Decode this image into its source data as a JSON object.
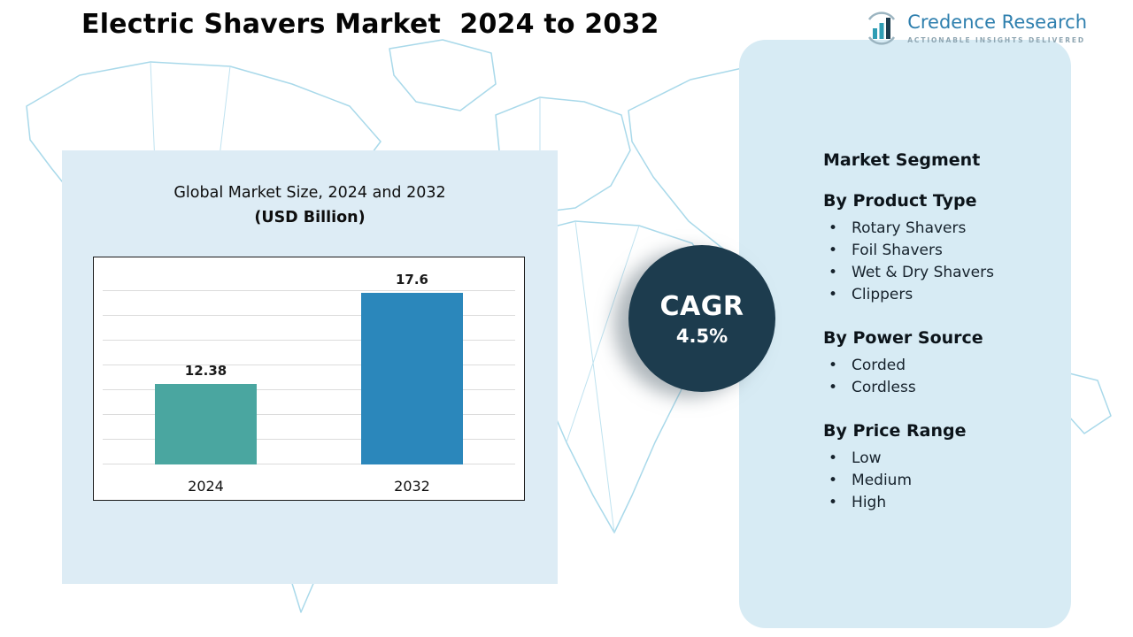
{
  "header": {
    "title": "Electric Shavers Market  2024 to 2032",
    "logo": {
      "name": "Credence Research",
      "tagline": "Actionable Insights Delivered"
    }
  },
  "chart_data": {
    "type": "bar",
    "title": "Global Market Size, 2024 and 2032",
    "subtitle": "(USD Billion)",
    "categories": [
      "2024",
      "2032"
    ],
    "values": [
      12.38,
      17.6
    ],
    "xlabel": "",
    "ylabel": "",
    "ylim": [
      8,
      18.5
    ],
    "grid": true,
    "legend": false,
    "bar_colors": [
      "#4aa6a0",
      "#2b87bb"
    ]
  },
  "cagr": {
    "label": "CAGR",
    "value": "4.5%"
  },
  "segments": {
    "title": "Market Segment",
    "groups": [
      {
        "heading": "By Product Type",
        "items": [
          "Rotary Shavers",
          "Foil Shavers",
          "Wet & Dry Shavers",
          "Clippers"
        ]
      },
      {
        "heading": "By Power Source",
        "items": [
          "Corded",
          "Cordless"
        ]
      },
      {
        "heading": "By Price Range",
        "items": [
          "Low",
          "Medium",
          "High"
        ]
      }
    ]
  },
  "colors": {
    "bar_2024": "#4aa6a0",
    "bar_2032": "#2b87bb",
    "cagr_circle": "#1d3c4e",
    "left_panel_bg": "#ddecf5",
    "right_panel_bg": "#d7ebf4",
    "map_lines": "#a9d9ea",
    "logo_blue": "#2e7fae"
  }
}
